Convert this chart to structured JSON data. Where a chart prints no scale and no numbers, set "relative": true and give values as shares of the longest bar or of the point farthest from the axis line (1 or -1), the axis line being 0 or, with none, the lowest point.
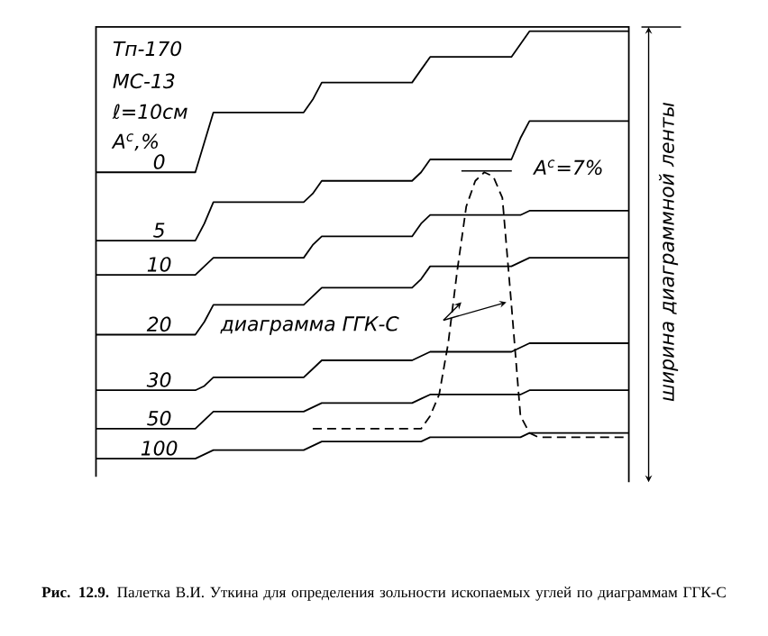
{
  "chart_data": {
    "type": "line",
    "relative": true,
    "ylabel": "ширина диаграммной ленты",
    "categories": [
      null,
      null,
      null,
      null,
      null,
      null,
      null,
      null,
      null,
      null,
      null,
      null,
      null,
      null,
      null,
      null,
      null,
      null,
      null,
      null,
      null,
      null,
      null,
      null,
      null,
      null,
      null,
      null,
      null,
      null,
      null,
      null,
      null,
      null,
      null,
      null,
      null,
      null,
      null,
      null,
      null,
      null,
      null,
      null,
      null,
      null,
      null,
      null,
      null,
      null,
      null,
      null,
      null,
      null,
      null,
      null,
      null,
      null,
      null,
      null
    ],
    "series": [
      {
        "name": "0",
        "color": "#000000",
        "values": [
          0.67,
          0.67,
          0.67,
          0.67,
          0.67,
          0.67,
          0.67,
          0.67,
          0.67,
          0.67,
          0.67,
          0.67,
          0.74,
          0.81,
          0.81,
          0.81,
          0.81,
          0.81,
          0.81,
          0.81,
          0.81,
          0.81,
          0.81,
          0.81,
          0.84,
          0.88,
          0.88,
          0.88,
          0.88,
          0.88,
          0.88,
          0.88,
          0.88,
          0.88,
          0.88,
          0.88,
          0.91,
          0.94,
          0.94,
          0.94,
          0.94,
          0.94,
          0.94,
          0.94,
          0.94,
          0.94,
          0.94,
          0.97,
          1,
          1,
          1,
          1,
          1,
          1,
          1,
          1,
          1,
          1,
          1,
          1
        ]
      },
      {
        "name": "5",
        "color": "#000000",
        "values": [
          0.51,
          0.51,
          0.51,
          0.51,
          0.51,
          0.51,
          0.51,
          0.51,
          0.51,
          0.51,
          0.51,
          0.51,
          0.55,
          0.6,
          0.6,
          0.6,
          0.6,
          0.6,
          0.6,
          0.6,
          0.6,
          0.6,
          0.6,
          0.6,
          0.62,
          0.65,
          0.65,
          0.65,
          0.65,
          0.65,
          0.65,
          0.65,
          0.65,
          0.65,
          0.65,
          0.65,
          0.67,
          0.7,
          0.7,
          0.7,
          0.7,
          0.7,
          0.7,
          0.7,
          0.7,
          0.7,
          0.7,
          0.75,
          0.79,
          0.79,
          0.79,
          0.79,
          0.79,
          0.79,
          0.79,
          0.79,
          0.79,
          0.79,
          0.79,
          0.79
        ]
      },
      {
        "name": "10",
        "color": "#000000",
        "values": [
          0.43,
          0.43,
          0.43,
          0.43,
          0.43,
          0.43,
          0.43,
          0.43,
          0.43,
          0.43,
          0.43,
          0.43,
          0.45,
          0.47,
          0.47,
          0.47,
          0.47,
          0.47,
          0.47,
          0.47,
          0.47,
          0.47,
          0.47,
          0.47,
          0.5,
          0.52,
          0.52,
          0.52,
          0.52,
          0.52,
          0.52,
          0.52,
          0.52,
          0.52,
          0.52,
          0.52,
          0.55,
          0.57,
          0.57,
          0.57,
          0.57,
          0.57,
          0.57,
          0.57,
          0.57,
          0.57,
          0.57,
          0.57,
          0.58,
          0.58,
          0.58,
          0.58,
          0.58,
          0.58,
          0.58,
          0.58,
          0.58,
          0.58,
          0.58,
          0.58
        ]
      },
      {
        "name": "20",
        "color": "#000000",
        "values": [
          0.29,
          0.29,
          0.29,
          0.29,
          0.29,
          0.29,
          0.29,
          0.29,
          0.29,
          0.29,
          0.29,
          0.29,
          0.32,
          0.36,
          0.36,
          0.36,
          0.36,
          0.36,
          0.36,
          0.36,
          0.36,
          0.36,
          0.36,
          0.36,
          0.38,
          0.4,
          0.4,
          0.4,
          0.4,
          0.4,
          0.4,
          0.4,
          0.4,
          0.4,
          0.4,
          0.4,
          0.42,
          0.45,
          0.45,
          0.45,
          0.45,
          0.45,
          0.45,
          0.45,
          0.45,
          0.45,
          0.45,
          0.46,
          0.47,
          0.47,
          0.47,
          0.47,
          0.47,
          0.47,
          0.47,
          0.47,
          0.47,
          0.47,
          0.47,
          0.47
        ]
      },
      {
        "name": "30",
        "color": "#000000",
        "values": [
          0.16,
          0.16,
          0.16,
          0.16,
          0.16,
          0.16,
          0.16,
          0.16,
          0.16,
          0.16,
          0.16,
          0.16,
          0.17,
          0.19,
          0.19,
          0.19,
          0.19,
          0.19,
          0.19,
          0.19,
          0.19,
          0.19,
          0.19,
          0.19,
          0.21,
          0.23,
          0.23,
          0.23,
          0.23,
          0.23,
          0.23,
          0.23,
          0.23,
          0.23,
          0.23,
          0.23,
          0.24,
          0.25,
          0.25,
          0.25,
          0.25,
          0.25,
          0.25,
          0.25,
          0.25,
          0.25,
          0.25,
          0.26,
          0.27,
          0.27,
          0.27,
          0.27,
          0.27,
          0.27,
          0.27,
          0.27,
          0.27,
          0.27,
          0.27,
          0.27
        ]
      },
      {
        "name": "50",
        "color": "#000000",
        "values": [
          0.07,
          0.07,
          0.07,
          0.07,
          0.07,
          0.07,
          0.07,
          0.07,
          0.07,
          0.07,
          0.07,
          0.07,
          0.09,
          0.11,
          0.11,
          0.11,
          0.11,
          0.11,
          0.11,
          0.11,
          0.11,
          0.11,
          0.11,
          0.11,
          0.12,
          0.13,
          0.13,
          0.13,
          0.13,
          0.13,
          0.13,
          0.13,
          0.13,
          0.13,
          0.13,
          0.13,
          0.14,
          0.15,
          0.15,
          0.15,
          0.15,
          0.15,
          0.15,
          0.15,
          0.15,
          0.15,
          0.15,
          0.15,
          0.16,
          0.16,
          0.16,
          0.16,
          0.16,
          0.16,
          0.16,
          0.16,
          0.16,
          0.16,
          0.16,
          0.16
        ]
      },
      {
        "name": "100",
        "color": "#000000",
        "values": [
          0,
          0,
          0,
          0,
          0,
          0,
          0,
          0,
          0,
          0,
          0,
          0,
          0.01,
          0.02,
          0.02,
          0.02,
          0.02,
          0.02,
          0.02,
          0.02,
          0.02,
          0.02,
          0.02,
          0.02,
          0.03,
          0.04,
          0.04,
          0.04,
          0.04,
          0.04,
          0.04,
          0.04,
          0.04,
          0.04,
          0.04,
          0.04,
          0.04,
          0.05,
          0.05,
          0.05,
          0.05,
          0.05,
          0.05,
          0.05,
          0.05,
          0.05,
          0.05,
          0.05,
          0.06,
          0.06,
          0.06,
          0.06,
          0.06,
          0.06,
          0.06,
          0.06,
          0.06,
          0.06,
          0.06,
          0.06
        ]
      },
      {
        "color": "#000000",
        "line_style": "dashed",
        "values": [
          null,
          null,
          null,
          null,
          null,
          null,
          null,
          null,
          null,
          null,
          null,
          null,
          null,
          null,
          null,
          null,
          null,
          null,
          null,
          null,
          null,
          null,
          null,
          null,
          0.07,
          0.07,
          0.07,
          0.07,
          0.07,
          0.07,
          0.07,
          0.07,
          0.07,
          0.07,
          0.07,
          0.07,
          0.07,
          0.1,
          0.15,
          0.27,
          0.44,
          0.59,
          0.65,
          0.67,
          0.66,
          0.61,
          0.36,
          0.1,
          0.06,
          0.05,
          0.05,
          0.05,
          0.05,
          0.05,
          0.05,
          0.05,
          0.05,
          0.05,
          0.05,
          0.05
        ]
      }
    ],
    "annotations": [
      "Тп-170",
      "МС-13",
      "ℓ=10см",
      "A$^{c}$,%",
      "A$^{c}$=7%",
      "диаграмма ГГК-С",
      "**Рис. 12.9.** Палетка В.И. Уткина для определения зольности ископаемых углей по диаграммам ГГК-С"
    ]
  }
}
